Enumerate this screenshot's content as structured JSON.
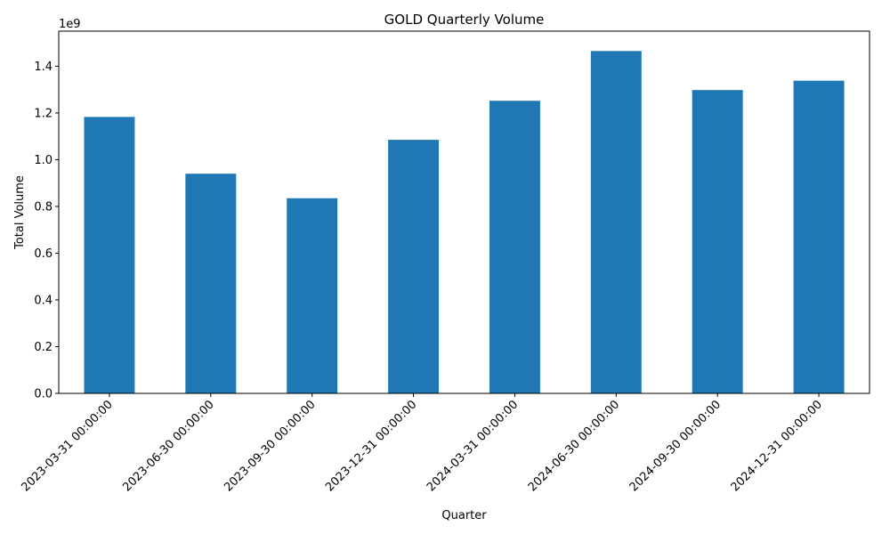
{
  "chart_data": {
    "type": "bar",
    "title": "GOLD Quarterly Volume",
    "xlabel": "Quarter",
    "ylabel": "Total Volume",
    "offset_label": "1e9",
    "categories": [
      "2023-03-31 00:00:00",
      "2023-06-30 00:00:00",
      "2023-09-30 00:00:00",
      "2023-12-31 00:00:00",
      "2024-03-31 00:00:00",
      "2024-06-30 00:00:00",
      "2024-09-30 00:00:00",
      "2024-12-31 00:00:00"
    ],
    "values": [
      1.183,
      0.94,
      0.835,
      1.085,
      1.252,
      1.465,
      1.298,
      1.338
    ],
    "ylim": [
      0,
      1.55
    ],
    "yticks": [
      "0.0",
      "0.2",
      "0.4",
      "0.6",
      "0.8",
      "1.0",
      "1.2",
      "1.4"
    ],
    "grid": false,
    "legend": "none",
    "bar_color": "#1f77b4"
  }
}
